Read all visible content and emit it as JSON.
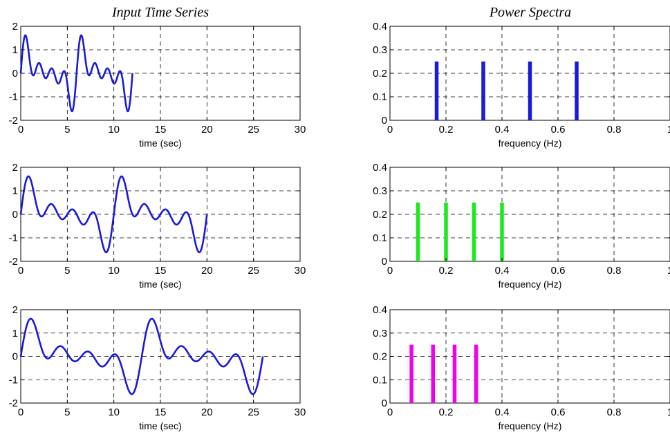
{
  "titles": {
    "left": "Input Time Series",
    "right": "Power Spectra"
  },
  "colors": {
    "time_series": "#1a1ad8",
    "spectra": [
      "#1a1ad8",
      "#1fe81f",
      "#f000f0"
    ]
  },
  "chart_data": [
    {
      "type": "line",
      "title": "Input Time Series",
      "xlabel": "time  (sec)",
      "ylabel": "",
      "xlim": [
        0,
        30
      ],
      "ylim": [
        -2,
        2
      ],
      "xticks": [
        0,
        5,
        10,
        15,
        20,
        25,
        30
      ],
      "yticks": [
        -2,
        -1,
        0,
        1,
        2
      ],
      "grid": true,
      "duration": 12,
      "frequencies_hz": [
        0.1667,
        0.3333,
        0.5,
        0.6667
      ],
      "series": [
        {
          "color": "#1a1ad8"
        }
      ]
    },
    {
      "type": "bar",
      "title": "Power Spectra",
      "xlabel": "frequency  (Hz)",
      "ylabel": "",
      "xlim": [
        0,
        1
      ],
      "ylim": [
        0,
        0.4
      ],
      "xticks": [
        0,
        0.2,
        0.4,
        0.6,
        0.8,
        1
      ],
      "xticklabels": [
        "0",
        "0.2",
        "0.4",
        "0.6",
        "0.8",
        "1"
      ],
      "yticks": [
        0,
        0.1,
        0.2,
        0.3,
        0.4
      ],
      "grid": true,
      "x": [
        0.1667,
        0.3333,
        0.5,
        0.6667
      ],
      "values": [
        0.25,
        0.25,
        0.25,
        0.25
      ],
      "series": [
        {
          "color": "#1a1ad8"
        }
      ]
    },
    {
      "type": "line",
      "title": "",
      "xlabel": "time  (sec)",
      "ylabel": "",
      "xlim": [
        0,
        30
      ],
      "ylim": [
        -2,
        2
      ],
      "xticks": [
        0,
        5,
        10,
        15,
        20,
        25,
        30
      ],
      "yticks": [
        -2,
        -1,
        0,
        1,
        2
      ],
      "grid": true,
      "duration": 20,
      "frequencies_hz": [
        0.1,
        0.2,
        0.3,
        0.4
      ],
      "series": [
        {
          "color": "#1a1ad8"
        }
      ]
    },
    {
      "type": "bar",
      "title": "",
      "xlabel": "frequency  (Hz)",
      "ylabel": "",
      "xlim": [
        0,
        1
      ],
      "ylim": [
        0,
        0.4
      ],
      "xticks": [
        0,
        0.2,
        0.4,
        0.6,
        0.8,
        1
      ],
      "xticklabels": [
        "0",
        "0.2",
        "0.4",
        "0.6",
        "0.8",
        "1"
      ],
      "yticks": [
        0,
        0.1,
        0.2,
        0.3,
        0.4
      ],
      "grid": true,
      "x": [
        0.1,
        0.2,
        0.3,
        0.4
      ],
      "values": [
        0.25,
        0.25,
        0.25,
        0.25
      ],
      "series": [
        {
          "color": "#1fe81f"
        }
      ]
    },
    {
      "type": "line",
      "title": "",
      "xlabel": "time  (sec)",
      "ylabel": "",
      "xlim": [
        0,
        30
      ],
      "ylim": [
        -2,
        2
      ],
      "xticks": [
        0,
        5,
        10,
        15,
        20,
        25,
        30
      ],
      "yticks": [
        -2,
        -1,
        0,
        1,
        2
      ],
      "grid": true,
      "duration": 26,
      "frequencies_hz": [
        0.0769,
        0.1538,
        0.2308,
        0.3077
      ],
      "series": [
        {
          "color": "#1a1ad8"
        }
      ]
    },
    {
      "type": "bar",
      "title": "",
      "xlabel": "frequency  (Hz)",
      "ylabel": "",
      "xlim": [
        0,
        1
      ],
      "ylim": [
        0,
        0.4
      ],
      "xticks": [
        0,
        0.2,
        0.4,
        0.6,
        0.8,
        1
      ],
      "xticklabels": [
        "0",
        "0.2",
        "0.4",
        "0.6",
        "0.8",
        "1"
      ],
      "yticks": [
        0,
        0.1,
        0.2,
        0.3,
        0.4
      ],
      "grid": true,
      "x": [
        0.0769,
        0.1538,
        0.2308,
        0.3077
      ],
      "values": [
        0.25,
        0.25,
        0.25,
        0.25
      ],
      "series": [
        {
          "color": "#f000f0"
        }
      ]
    }
  ]
}
